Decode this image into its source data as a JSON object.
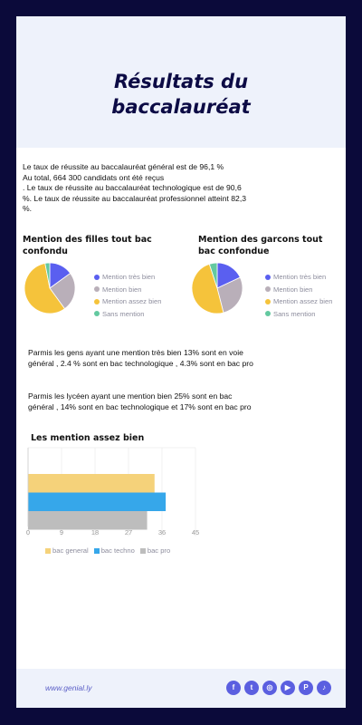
{
  "header": {
    "title_line1": "Résultats du",
    "title_line2": "baccalauréat"
  },
  "intro": [
    "Le taux de réussite au baccalauréat général est de 96,1 %",
    "Au total, 664 300 candidats ont été reçus",
    ". Le taux de réussite au baccalauréat technologique est de 90,6 %. Le taux de réussite au baccalauréat professionnel atteint 82,3 %."
  ],
  "colors": {
    "tres_bien": "#5a5ff0",
    "bien": "#b9afb9",
    "assez_bien": "#f5c33b",
    "sans": "#63c9a0",
    "bac_general": "#f5d27a",
    "bac_techno": "#36a7ea",
    "bac_pro": "#bdbdbd"
  },
  "paragraphs": {
    "p1": "Parmis les gens ayant une mention très bien 13% sont en voie général , 2.4 % sont en bac technologique , 4.3% sont en bac pro",
    "p2": "Parmis les lycéen ayant une mention bien 25% sont en bac général , 14% sont en bac technologique et 17%  sont en bac pro"
  },
  "chart_data": [
    {
      "type": "pie",
      "title_line1": "Mention des filles tout bac",
      "title_line2": "confondu",
      "legend_position": "right",
      "slices": [
        {
          "label": "Mention très bien",
          "value": 15
        },
        {
          "label": "Mention bien",
          "value": 25
        },
        {
          "label": "Mention assez bien",
          "value": 57
        },
        {
          "label": "Sans mention",
          "value": 3
        }
      ]
    },
    {
      "type": "pie",
      "title_line1": "Mention des garcons tout",
      "title_line2": "bac confondue",
      "legend_position": "right",
      "slices": [
        {
          "label": "Mention très bien",
          "value": 18
        },
        {
          "label": "Mention bien",
          "value": 28
        },
        {
          "label": "Mention assez bien",
          "value": 49
        },
        {
          "label": "Sans mention",
          "value": 5
        }
      ]
    },
    {
      "type": "bar",
      "orientation": "horizontal",
      "title": "Les mention assez bien",
      "grid": true,
      "legend_position": "bottom-left",
      "xlim": [
        0,
        45
      ],
      "xticks": [
        "0",
        "9",
        "18",
        "27",
        "36",
        "45"
      ],
      "series": [
        {
          "name": "bac general",
          "value": 34
        },
        {
          "name": "bac techno",
          "value": 37
        },
        {
          "name": "bac pro",
          "value": 32
        }
      ]
    }
  ],
  "footer": {
    "site": "www.genial.ly",
    "socials": [
      "f",
      "t",
      "◎",
      "▶",
      "P",
      "♪"
    ]
  }
}
